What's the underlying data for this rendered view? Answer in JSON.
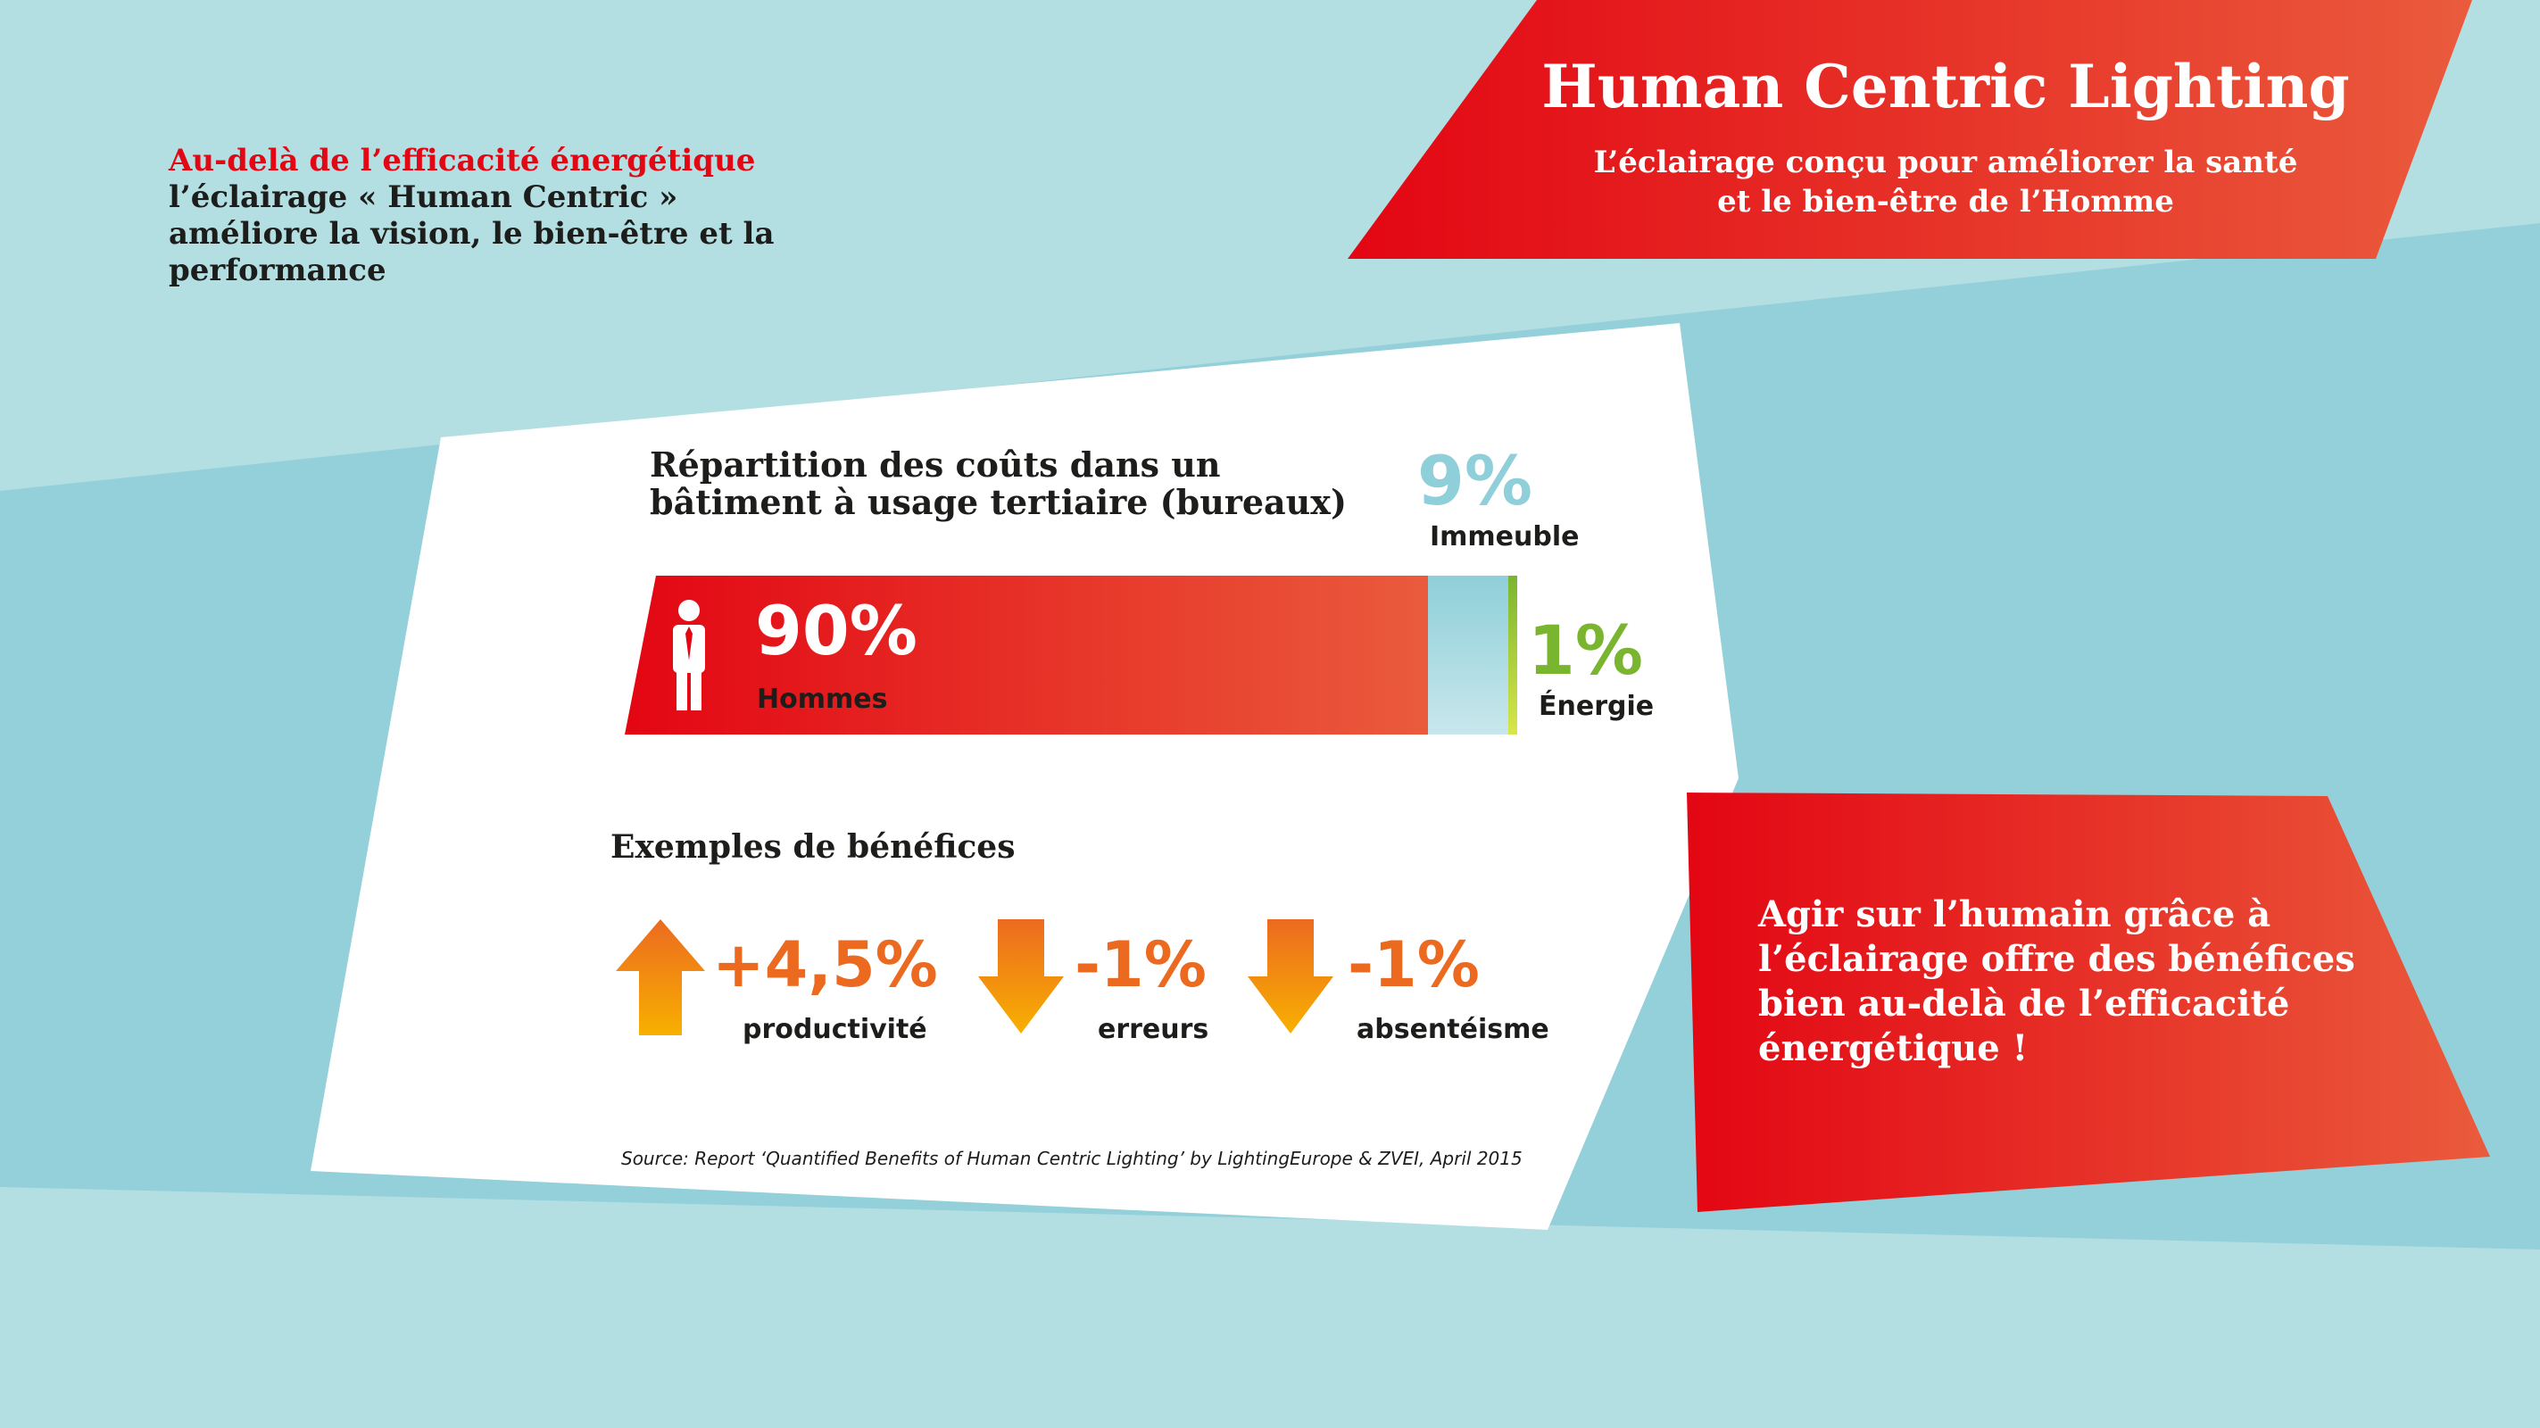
{
  "header": {
    "title": "Human Centric Lighting",
    "subtitle_line1": "L’éclairage conçu pour améliorer la santé",
    "subtitle_line2": "et le bien-être de l’Homme"
  },
  "intro": {
    "lead": "Au-delà de l’efficacité énergétique",
    "rest": "l’éclairage « Human Centric » améliore la vision, le bien-être et la performance"
  },
  "benefits": {
    "title": "Exemples de bénéfices",
    "items": [
      {
        "value": "+4,5%",
        "label": "productivité",
        "direction": "up"
      },
      {
        "value": "-1%",
        "label": "erreurs",
        "direction": "down"
      },
      {
        "value": "-1%",
        "label": "absentéisme",
        "direction": "down"
      }
    ]
  },
  "source": "Source: Report ‘Quantified Benefits of Human Centric Lighting’ by LightingEurope & ZVEI, April 2015",
  "callout": "Agir sur l’humain grâce à l’éclairage offre des bénéfices bien au-delà de l’efficacité énergétique !",
  "colors": {
    "red": "#e30613",
    "orange_red": "#ea5b3c",
    "light_blue": "#8fcfd9",
    "green": "#7ab530",
    "orange": "#ec6a20",
    "yellow": "#f8b000",
    "background": "#b3dfe3"
  },
  "icons": {
    "person": "businessman-icon",
    "up": "arrow-up-icon",
    "down": "arrow-down-icon"
  },
  "chart_data": {
    "type": "bar",
    "orientation": "horizontal-stacked",
    "title": "Répartition des coûts dans un bâtiment à usage tertiaire (bureaux)",
    "series": [
      {
        "name": "Hommes",
        "value": 90,
        "display": "90%"
      },
      {
        "name": "Immeuble",
        "value": 9,
        "display": "9%"
      },
      {
        "name": "Énergie",
        "value": 1,
        "display": "1%"
      }
    ],
    "unit": "%",
    "total": 100
  }
}
